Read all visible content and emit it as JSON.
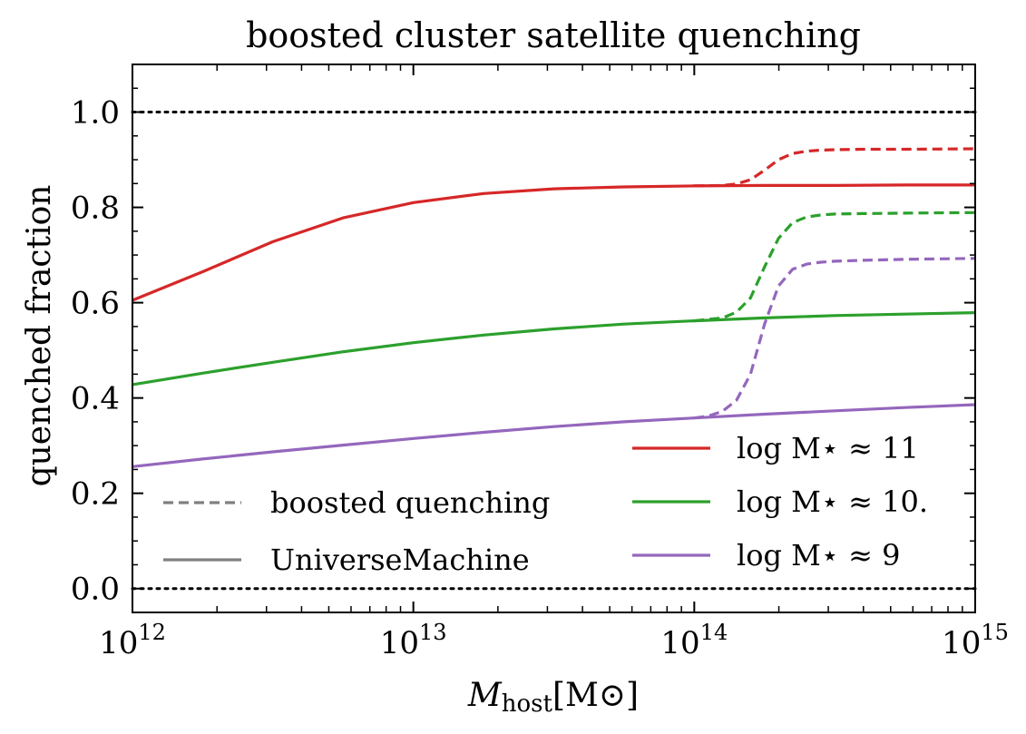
{
  "chart_data": {
    "type": "line",
    "title": "boosted cluster satellite quenching",
    "xlabel_main": "M",
    "xlabel_sub": "host",
    "xlabel_unit": "[M⊙]",
    "ylabel": "quenched fraction",
    "xscale": "log",
    "xlim": [
      1000000000000.0,
      1000000000000000.0
    ],
    "ylim": [
      -0.05,
      1.1
    ],
    "x_ticks": [
      {
        "base": "10",
        "exp": "12",
        "value": 1000000000000.0
      },
      {
        "base": "10",
        "exp": "13",
        "value": 10000000000000.0
      },
      {
        "base": "10",
        "exp": "14",
        "value": 100000000000000.0
      },
      {
        "base": "10",
        "exp": "15",
        "value": 1000000000000000.0
      }
    ],
    "y_ticks": [
      "0.0",
      "0.2",
      "0.4",
      "0.6",
      "0.8",
      "1.0"
    ],
    "y_tick_values": [
      0.0,
      0.2,
      0.4,
      0.6,
      0.8,
      1.0
    ],
    "reference_lines": [
      {
        "y": 1.0,
        "style": "dotted",
        "color": "#000000"
      },
      {
        "y": 0.0,
        "style": "dotted",
        "color": "#000000"
      }
    ],
    "series": [
      {
        "name": "log M⋆ ≈ 11",
        "color": "#d62728",
        "universe_machine": {
          "log_x": [
            12.0,
            12.25,
            12.5,
            12.75,
            13.0,
            13.25,
            13.5,
            13.75,
            14.0,
            14.25,
            14.5,
            14.75,
            15.0
          ],
          "y": [
            0.605,
            0.665,
            0.728,
            0.778,
            0.81,
            0.829,
            0.839,
            0.843,
            0.845,
            0.846,
            0.846,
            0.847,
            0.847
          ]
        },
        "boosted": {
          "log_x": [
            14.0,
            14.1,
            14.15,
            14.2,
            14.25,
            14.3,
            14.35,
            14.4,
            14.45,
            14.5,
            14.6,
            14.75,
            15.0
          ],
          "y": [
            0.845,
            0.846,
            0.849,
            0.858,
            0.878,
            0.9,
            0.913,
            0.918,
            0.92,
            0.921,
            0.922,
            0.922,
            0.923
          ]
        }
      },
      {
        "name": "log M⋆ ≈ 10.",
        "color": "#2ca02c",
        "universe_machine": {
          "log_x": [
            12.0,
            12.25,
            12.5,
            12.75,
            13.0,
            13.25,
            13.5,
            13.75,
            14.0,
            14.25,
            14.5,
            14.75,
            15.0
          ],
          "y": [
            0.428,
            0.452,
            0.475,
            0.497,
            0.516,
            0.532,
            0.545,
            0.555,
            0.562,
            0.568,
            0.573,
            0.576,
            0.579
          ]
        },
        "boosted": {
          "log_x": [
            14.0,
            14.1,
            14.15,
            14.2,
            14.25,
            14.3,
            14.35,
            14.4,
            14.45,
            14.5,
            14.6,
            14.75,
            15.0
          ],
          "y": [
            0.562,
            0.568,
            0.58,
            0.61,
            0.675,
            0.735,
            0.768,
            0.78,
            0.784,
            0.786,
            0.787,
            0.788,
            0.789
          ]
        }
      },
      {
        "name": "log M⋆ ≈ 9",
        "color": "#9467bd",
        "universe_machine": {
          "log_x": [
            12.0,
            12.25,
            12.5,
            12.75,
            13.0,
            13.25,
            13.5,
            13.75,
            14.0,
            14.25,
            14.5,
            14.75,
            15.0
          ],
          "y": [
            0.256,
            0.272,
            0.287,
            0.301,
            0.315,
            0.328,
            0.34,
            0.35,
            0.358,
            0.366,
            0.373,
            0.38,
            0.386
          ]
        },
        "boosted": {
          "log_x": [
            14.0,
            14.05,
            14.1,
            14.15,
            14.2,
            14.25,
            14.3,
            14.35,
            14.4,
            14.45,
            14.5,
            14.6,
            14.75,
            15.0
          ],
          "y": [
            0.358,
            0.362,
            0.372,
            0.395,
            0.45,
            0.555,
            0.635,
            0.67,
            0.681,
            0.685,
            0.687,
            0.689,
            0.691,
            0.693
          ]
        }
      }
    ],
    "legend_styles": [
      {
        "label": "boosted quenching",
        "dash": "dashed",
        "color": "#808080"
      },
      {
        "label": "UniverseMachine",
        "dash": "solid",
        "color": "#808080"
      }
    ],
    "legend_placement": "bottom"
  }
}
